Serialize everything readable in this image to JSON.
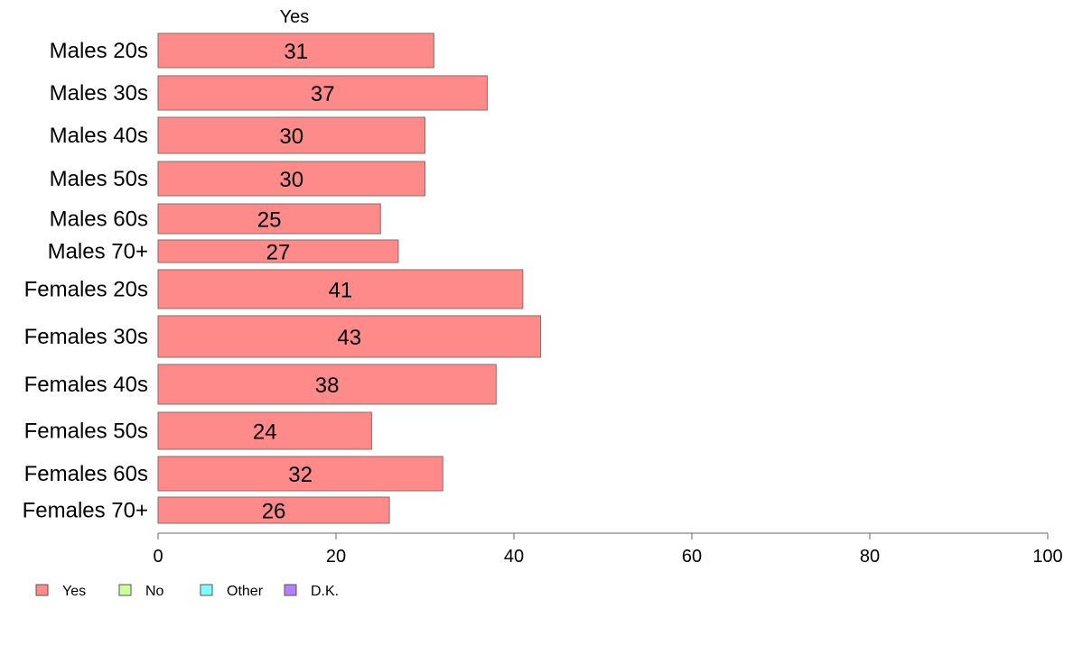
{
  "chart_data": {
    "type": "bar",
    "orientation": "horizontal",
    "series_header": "Yes",
    "categories": [
      "Males 20s",
      "Males 30s",
      "Males 40s",
      "Males 50s",
      "Males 60s",
      "Males 70+",
      "Females 20s",
      "Females 30s",
      "Females 40s",
      "Females 50s",
      "Females 60s",
      "Females 70+"
    ],
    "series": [
      {
        "name": "Yes",
        "color": "#ff8a8a",
        "values": [
          31,
          37,
          30,
          30,
          25,
          27,
          41,
          43,
          38,
          24,
          32,
          26
        ]
      }
    ],
    "xlim": [
      0,
      100
    ],
    "xticks": [
      0,
      20,
      40,
      60,
      80,
      100
    ],
    "grid": false,
    "legend_position": "bottom-left",
    "legend": [
      {
        "label": "Yes",
        "color": "#ff8a8a"
      },
      {
        "label": "No",
        "color": "#ccff99"
      },
      {
        "label": "Other",
        "color": "#80ffff"
      },
      {
        "label": "D.K.",
        "color": "#b380ff"
      }
    ]
  }
}
